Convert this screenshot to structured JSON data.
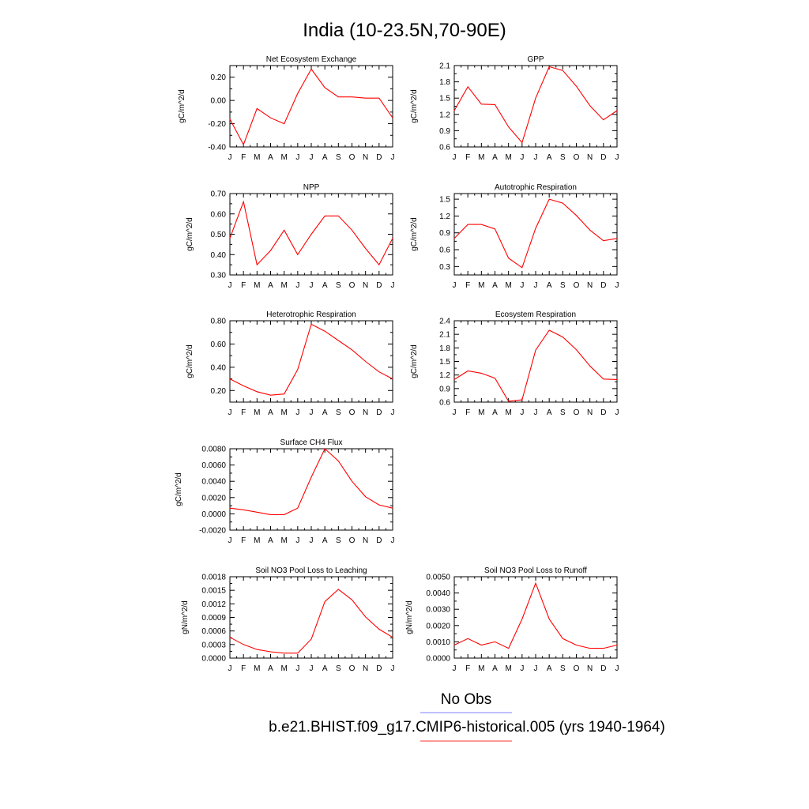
{
  "page": {
    "title": "India (10-23.5N,70-90E)"
  },
  "legend": {
    "items": [
      {
        "label": "No Obs",
        "color": "#7f7fff"
      },
      {
        "label": "b.e21.BHIST.f09_g17.CMIP6-historical.005 (yrs 1940-1964)",
        "color": "#ff3333"
      }
    ]
  },
  "series_color": "#ff0000",
  "chart_data": [
    {
      "type": "line",
      "title": "Net Ecosystem Exchange",
      "ylabel": "gC/m^2/d",
      "categories": [
        "J",
        "F",
        "M",
        "A",
        "M",
        "J",
        "J",
        "A",
        "S",
        "O",
        "N",
        "D",
        "J"
      ],
      "values": [
        -0.16,
        -0.38,
        -0.07,
        -0.15,
        -0.2,
        0.06,
        0.27,
        0.11,
        0.03,
        0.03,
        0.02,
        0.02,
        -0.15
      ],
      "ylim": [
        -0.4,
        0.3
      ],
      "yticks": [
        -0.4,
        -0.2,
        0.0,
        0.2
      ],
      "ytick_labels": [
        "-0.40",
        "-0.20",
        "0.00",
        "0.20"
      ]
    },
    {
      "type": "line",
      "title": "GPP",
      "ylabel": "gC/m^2/d",
      "categories": [
        "J",
        "F",
        "M",
        "A",
        "M",
        "J",
        "J",
        "A",
        "S",
        "O",
        "N",
        "D",
        "J"
      ],
      "values": [
        1.27,
        1.71,
        1.39,
        1.38,
        0.97,
        0.68,
        1.5,
        2.08,
        2.01,
        1.72,
        1.36,
        1.1,
        1.27
      ],
      "ylim": [
        0.6,
        2.1
      ],
      "yticks": [
        0.6,
        0.9,
        1.2,
        1.5,
        1.8,
        2.1
      ],
      "ytick_labels": [
        "0.6",
        "0.9",
        "1.2",
        "1.5",
        "1.8",
        "2.1"
      ]
    },
    {
      "type": "line",
      "title": "NPP",
      "ylabel": "gC/m^2/d",
      "categories": [
        "J",
        "F",
        "M",
        "A",
        "M",
        "J",
        "J",
        "A",
        "S",
        "O",
        "N",
        "D",
        "J"
      ],
      "values": [
        0.48,
        0.66,
        0.35,
        0.42,
        0.52,
        0.4,
        0.5,
        0.59,
        0.59,
        0.52,
        0.43,
        0.35,
        0.48
      ],
      "ylim": [
        0.3,
        0.7
      ],
      "yticks": [
        0.3,
        0.4,
        0.5,
        0.6,
        0.7
      ],
      "ytick_labels": [
        "0.30",
        "0.40",
        "0.50",
        "0.60",
        "0.70"
      ]
    },
    {
      "type": "line",
      "title": "Autotrophic Respiration",
      "ylabel": "gC/m^2/d",
      "categories": [
        "J",
        "F",
        "M",
        "A",
        "M",
        "J",
        "J",
        "A",
        "S",
        "O",
        "N",
        "D",
        "J"
      ],
      "values": [
        0.8,
        1.05,
        1.05,
        0.97,
        0.45,
        0.28,
        0.98,
        1.5,
        1.43,
        1.21,
        0.95,
        0.76,
        0.8
      ],
      "ylim": [
        0.15,
        1.6
      ],
      "yticks": [
        0.3,
        0.6,
        0.9,
        1.2,
        1.5
      ],
      "ytick_labels": [
        "0.3",
        "0.6",
        "0.9",
        "1.2",
        "1.5"
      ]
    },
    {
      "type": "line",
      "title": "Heterotrophic Respiration",
      "ylabel": "gC/m^2/d",
      "categories": [
        "J",
        "F",
        "M",
        "A",
        "M",
        "J",
        "J",
        "A",
        "S",
        "O",
        "N",
        "D",
        "J"
      ],
      "values": [
        0.3,
        0.24,
        0.19,
        0.16,
        0.17,
        0.38,
        0.77,
        0.71,
        0.63,
        0.55,
        0.45,
        0.36,
        0.3
      ],
      "ylim": [
        0.1,
        0.8
      ],
      "yticks": [
        0.2,
        0.4,
        0.6,
        0.8
      ],
      "ytick_labels": [
        "0.20",
        "0.40",
        "0.60",
        "0.80"
      ]
    },
    {
      "type": "line",
      "title": "Ecosystem Respiration",
      "ylabel": "gC/m^2/d",
      "categories": [
        "J",
        "F",
        "M",
        "A",
        "M",
        "J",
        "J",
        "A",
        "S",
        "O",
        "N",
        "D",
        "J"
      ],
      "values": [
        1.1,
        1.29,
        1.24,
        1.13,
        0.62,
        0.65,
        1.75,
        2.19,
        2.04,
        1.76,
        1.4,
        1.11,
        1.1
      ],
      "ylim": [
        0.6,
        2.4
      ],
      "yticks": [
        0.6,
        0.9,
        1.2,
        1.5,
        1.8,
        2.1,
        2.4
      ],
      "ytick_labels": [
        "0.6",
        "0.9",
        "1.2",
        "1.5",
        "1.8",
        "2.1",
        "2.4"
      ]
    },
    {
      "type": "line",
      "title": "Surface CH4 Flux",
      "ylabel": "gC/m^2/d",
      "categories": [
        "J",
        "F",
        "M",
        "A",
        "M",
        "J",
        "J",
        "A",
        "S",
        "O",
        "N",
        "D",
        "J"
      ],
      "values": [
        0.0007,
        0.0005,
        0.0002,
        -0.0001,
        -0.0001,
        0.0007,
        0.0045,
        0.008,
        0.0065,
        0.004,
        0.0021,
        0.0011,
        0.0007
      ],
      "ylim": [
        -0.002,
        0.008
      ],
      "yticks": [
        -0.002,
        0.0,
        0.002,
        0.004,
        0.006,
        0.008
      ],
      "ytick_labels": [
        "-0.0020",
        "0.0000",
        "0.0020",
        "0.0040",
        "0.0060",
        "0.0080"
      ]
    },
    {
      "type": "line",
      "title": "Soil NO3 Pool Loss to Leaching",
      "ylabel": "gN/m^2/d",
      "categories": [
        "J",
        "F",
        "M",
        "A",
        "M",
        "J",
        "J",
        "A",
        "S",
        "O",
        "N",
        "D",
        "J"
      ],
      "values": [
        0.00046,
        0.0003,
        0.00019,
        0.00014,
        0.00011,
        0.00011,
        0.00042,
        0.00125,
        0.00152,
        0.00129,
        0.00091,
        0.00064,
        0.00046
      ],
      "ylim": [
        0.0,
        0.0018
      ],
      "yticks": [
        0.0,
        0.0003,
        0.0006,
        0.0009,
        0.0012,
        0.0015,
        0.0018
      ],
      "ytick_labels": [
        "0.0000",
        "0.0003",
        "0.0006",
        "0.0009",
        "0.0012",
        "0.0015",
        "0.0018"
      ]
    },
    {
      "type": "line",
      "title": "Soil NO3 Pool Loss to Runoff",
      "ylabel": "gN/m^2/d",
      "categories": [
        "J",
        "F",
        "M",
        "A",
        "M",
        "J",
        "J",
        "A",
        "S",
        "O",
        "N",
        "D",
        "J"
      ],
      "values": [
        0.0008,
        0.0012,
        0.0008,
        0.001,
        0.0006,
        0.0024,
        0.0046,
        0.0024,
        0.0012,
        0.0008,
        0.0006,
        0.0006,
        0.0008
      ],
      "ylim": [
        0.0,
        0.005
      ],
      "yticks": [
        0.0,
        0.001,
        0.002,
        0.003,
        0.004,
        0.005
      ],
      "ytick_labels": [
        "0.0000",
        "0.0010",
        "0.0020",
        "0.0030",
        "0.0040",
        "0.0050"
      ]
    }
  ]
}
